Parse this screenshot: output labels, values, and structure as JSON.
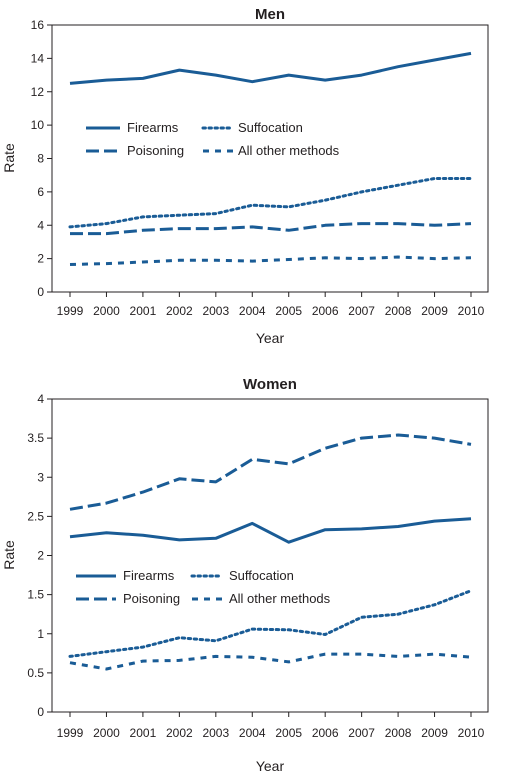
{
  "chart_data": [
    {
      "type": "line",
      "title": "Men",
      "xlabel": "Year",
      "ylabel": "Rate",
      "ylim": [
        0,
        16
      ],
      "yticks": [
        0,
        2,
        4,
        6,
        8,
        10,
        12,
        14,
        16
      ],
      "ytick_labels": [
        "0",
        "2",
        "4",
        "6",
        "8",
        "10",
        "12",
        "14",
        "16"
      ],
      "categories": [
        "1999",
        "2000",
        "2001",
        "2002",
        "2003",
        "2004",
        "2005",
        "2006",
        "2007",
        "2008",
        "2009",
        "2010"
      ],
      "grid": false,
      "legend_position": "center-left",
      "series": [
        {
          "name": "Firearms",
          "style": "solid",
          "values": [
            12.5,
            12.7,
            12.8,
            13.3,
            13.0,
            12.6,
            13.0,
            12.7,
            13.0,
            13.5,
            13.9,
            14.3
          ]
        },
        {
          "name": "Poisoning",
          "style": "dashed",
          "values": [
            3.5,
            3.5,
            3.7,
            3.8,
            3.8,
            3.9,
            3.7,
            4.0,
            4.1,
            4.1,
            4.0,
            4.1
          ]
        },
        {
          "name": "Suffocation",
          "style": "dotted",
          "values": [
            3.9,
            4.1,
            4.5,
            4.6,
            4.7,
            5.2,
            5.1,
            5.5,
            6.0,
            6.4,
            6.8,
            6.8
          ]
        },
        {
          "name": "All other methods",
          "style": "short-dash",
          "values": [
            1.65,
            1.7,
            1.8,
            1.9,
            1.9,
            1.85,
            1.95,
            2.05,
            2.0,
            2.1,
            2.0,
            2.05
          ]
        }
      ]
    },
    {
      "type": "line",
      "title": "Women",
      "xlabel": "Year",
      "ylabel": "Rate",
      "ylim": [
        0,
        4
      ],
      "yticks": [
        0,
        0.5,
        1,
        1.5,
        2,
        2.5,
        3,
        3.5,
        4
      ],
      "ytick_labels": [
        "0",
        "0.5",
        "1",
        "1.5",
        "2",
        "2.5",
        "3",
        "3.5",
        "4"
      ],
      "categories": [
        "1999",
        "2000",
        "2001",
        "2002",
        "2003",
        "2004",
        "2005",
        "2006",
        "2007",
        "2008",
        "2009",
        "2010"
      ],
      "grid": false,
      "legend_position": "lower-left",
      "series": [
        {
          "name": "Firearms",
          "style": "solid",
          "values": [
            2.24,
            2.29,
            2.26,
            2.2,
            2.22,
            2.41,
            2.17,
            2.33,
            2.34,
            2.37,
            2.44,
            2.47
          ]
        },
        {
          "name": "Poisoning",
          "style": "dashed",
          "values": [
            2.59,
            2.67,
            2.81,
            2.98,
            2.94,
            3.23,
            3.17,
            3.37,
            3.5,
            3.54,
            3.5,
            3.42
          ]
        },
        {
          "name": "Suffocation",
          "style": "dotted",
          "values": [
            0.71,
            0.77,
            0.83,
            0.95,
            0.91,
            1.06,
            1.05,
            0.99,
            1.21,
            1.25,
            1.37,
            1.55
          ]
        },
        {
          "name": "All other methods",
          "style": "short-dash",
          "values": [
            0.63,
            0.55,
            0.65,
            0.66,
            0.71,
            0.7,
            0.64,
            0.74,
            0.74,
            0.71,
            0.74,
            0.7
          ]
        }
      ]
    }
  ],
  "colors": {
    "series": "#1a5c96",
    "axis": "#231f20",
    "text": "#231f20",
    "background": "#ffffff"
  }
}
